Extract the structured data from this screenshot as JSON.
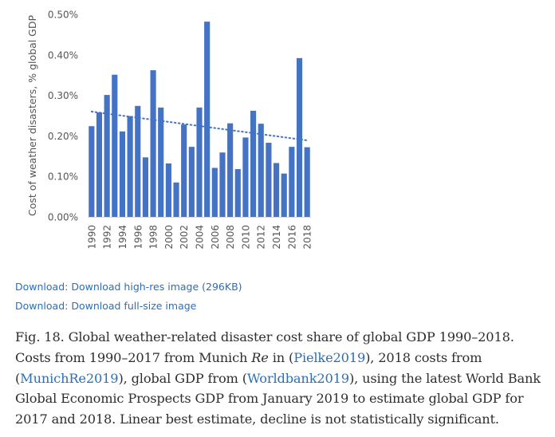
{
  "chart_data": {
    "type": "bar",
    "title": "",
    "xlabel": "",
    "ylabel": "Cost of weather disasters, % global GDP",
    "ylim": [
      0,
      0.5
    ],
    "yticks": [
      "0.00%",
      "0.10%",
      "0.20%",
      "0.30%",
      "0.40%",
      "0.50%"
    ],
    "ytick_values": [
      0,
      0.1,
      0.2,
      0.3,
      0.4,
      0.5
    ],
    "categories": [
      1990,
      1991,
      1992,
      1993,
      1994,
      1995,
      1996,
      1997,
      1998,
      1999,
      2000,
      2001,
      2002,
      2003,
      2004,
      2005,
      2006,
      2007,
      2008,
      2009,
      2010,
      2011,
      2012,
      2013,
      2014,
      2015,
      2016,
      2017,
      2018
    ],
    "xtick_labels": [
      "1990",
      "1992",
      "1994",
      "1996",
      "1998",
      "2000",
      "2002",
      "2004",
      "2006",
      "2008",
      "2010",
      "2012",
      "2014",
      "2016",
      "2018"
    ],
    "values": [
      0.224,
      0.258,
      0.301,
      0.351,
      0.211,
      0.249,
      0.274,
      0.147,
      0.362,
      0.27,
      0.132,
      0.085,
      0.228,
      0.173,
      0.27,
      0.482,
      0.121,
      0.159,
      0.231,
      0.118,
      0.196,
      0.262,
      0.23,
      0.183,
      0.133,
      0.107,
      0.173,
      0.392,
      0.172
    ],
    "series": [
      {
        "name": "Cost share of global GDP",
        "color": "#4472c4"
      },
      {
        "name": "Linear trend",
        "style": "dotted",
        "color": "#4472c4",
        "start_value": 0.26,
        "end_value": 0.189
      }
    ]
  },
  "downloads": {
    "high_res": "Download: Download high-res image (296KB)",
    "full_size": "Download: Download full-size image"
  },
  "caption": {
    "part1": "Fig. 18. Global weather-related disaster cost share of global GDP 1990–2018. Costs from 1990–2017 from Munich ",
    "italic": "Re",
    "part2": " in (",
    "link1": "Pielke2019",
    "part3": "), 2018 costs from (",
    "link2": "MunichRe2019",
    "part4": "), global GDP from (",
    "link3": "Worldbank2019",
    "part5": "), using the latest World Bank Global Economic Prospects GDP from January 2019 to estimate global GDP for 2017 and 2018. Linear best estimate, decline is not statistically significant."
  }
}
